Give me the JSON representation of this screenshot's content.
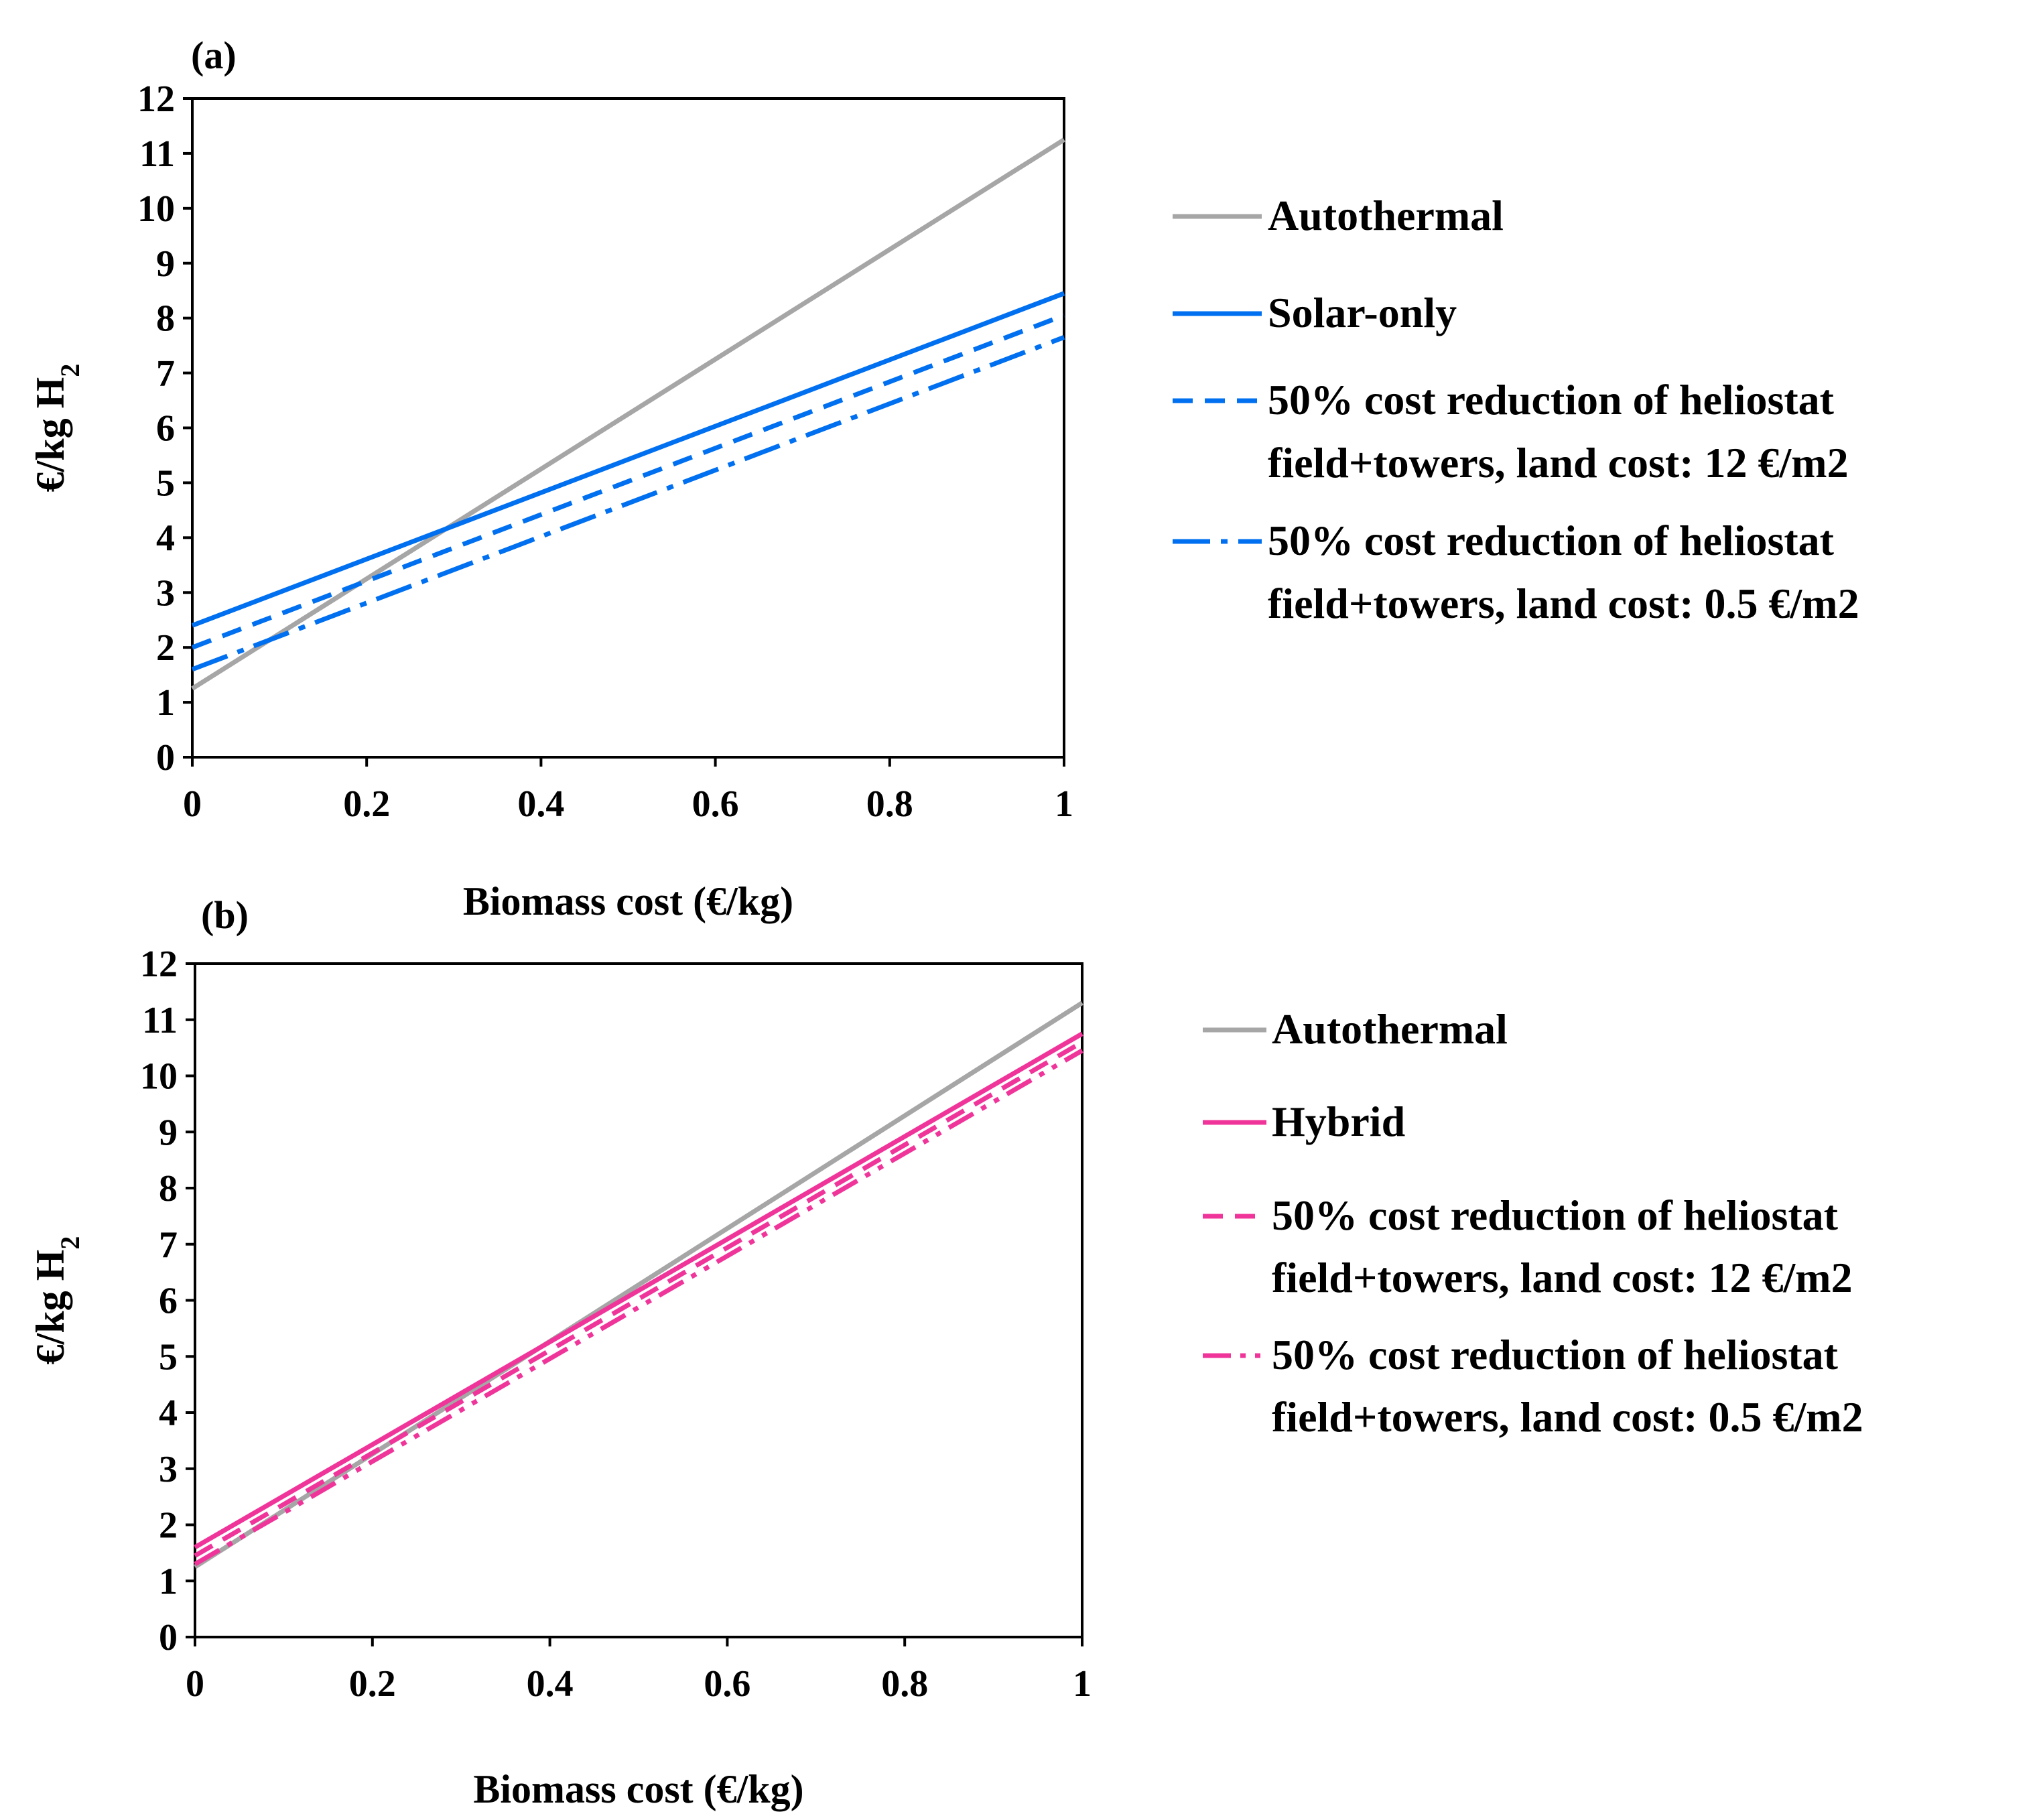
{
  "chart_data": [
    {
      "type": "line",
      "panel_label": "(a)",
      "xlabel": "Biomass cost (€/kg)",
      "ylabel": "€/kg H",
      "ylabel_sub": "2",
      "xlim": [
        0,
        1
      ],
      "ylim": [
        0,
        12
      ],
      "xticks": [
        "0",
        "0.2",
        "0.4",
        "0.6",
        "0.8",
        "1"
      ],
      "yticks": [
        "0",
        "1",
        "2",
        "3",
        "4",
        "5",
        "6",
        "7",
        "8",
        "9",
        "10",
        "11",
        "12"
      ],
      "x": [
        0,
        1
      ],
      "series": [
        {
          "name": "Autothermal",
          "values": [
            1.25,
            11.25
          ],
          "color": "#a6a6a6",
          "dash": "solid",
          "legend": [
            "Autothermal"
          ]
        },
        {
          "name": "Solar-only",
          "values": [
            2.4,
            8.45
          ],
          "color": "#0070f0",
          "dash": "solid",
          "legend": [
            "Solar-only"
          ]
        },
        {
          "name": "50% cost reduction of heliostat field+towers, land cost: 12 €/m2",
          "values": [
            2.0,
            8.05
          ],
          "color": "#0070f0",
          "dash": "dash",
          "legend": [
            "50% cost reduction of heliostat",
            "field+towers, land cost: 12 €/m2"
          ]
        },
        {
          "name": "50% cost reduction of heliostat field+towers, land cost: 0.5 €/m2",
          "values": [
            1.6,
            7.65
          ],
          "color": "#0070f0",
          "dash": "dashdot",
          "legend": [
            "50% cost reduction of heliostat",
            "field+towers, land cost: 0.5 €/m2"
          ]
        }
      ]
    },
    {
      "type": "line",
      "panel_label": "(b)",
      "xlabel": "Biomass cost (€/kg)",
      "ylabel": "€/kg H",
      "ylabel_sub": "2",
      "xlim": [
        0,
        1
      ],
      "ylim": [
        0,
        12
      ],
      "xticks": [
        "0",
        "0.2",
        "0.4",
        "0.6",
        "0.8",
        "1"
      ],
      "yticks": [
        "0",
        "1",
        "2",
        "3",
        "4",
        "5",
        "6",
        "7",
        "8",
        "9",
        "10",
        "11",
        "12"
      ],
      "x": [
        0,
        1
      ],
      "series": [
        {
          "name": "Autothermal",
          "values": [
            1.25,
            11.3
          ],
          "color": "#a6a6a6",
          "dash": "solid",
          "legend": [
            "Autothermal"
          ]
        },
        {
          "name": "Hybrid",
          "values": [
            1.6,
            10.75
          ],
          "color": "#f0359a",
          "dash": "solid",
          "legend": [
            "Hybrid"
          ]
        },
        {
          "name": "50% cost reduction of heliostat field+towers, land cost: 12 €/m2",
          "values": [
            1.45,
            10.6
          ],
          "color": "#f0359a",
          "dash": "dash",
          "legend": [
            "50% cost reduction of heliostat",
            "field+towers, land cost: 12 €/m2"
          ]
        },
        {
          "name": "50% cost reduction of heliostat field+towers, land cost: 0.5 €/m2",
          "values": [
            1.3,
            10.45
          ],
          "color": "#f0359a",
          "dash": "dashdotdot",
          "legend": [
            "50% cost reduction of heliostat",
            "field+towers, land cost: 0.5 €/m2"
          ]
        }
      ]
    }
  ]
}
